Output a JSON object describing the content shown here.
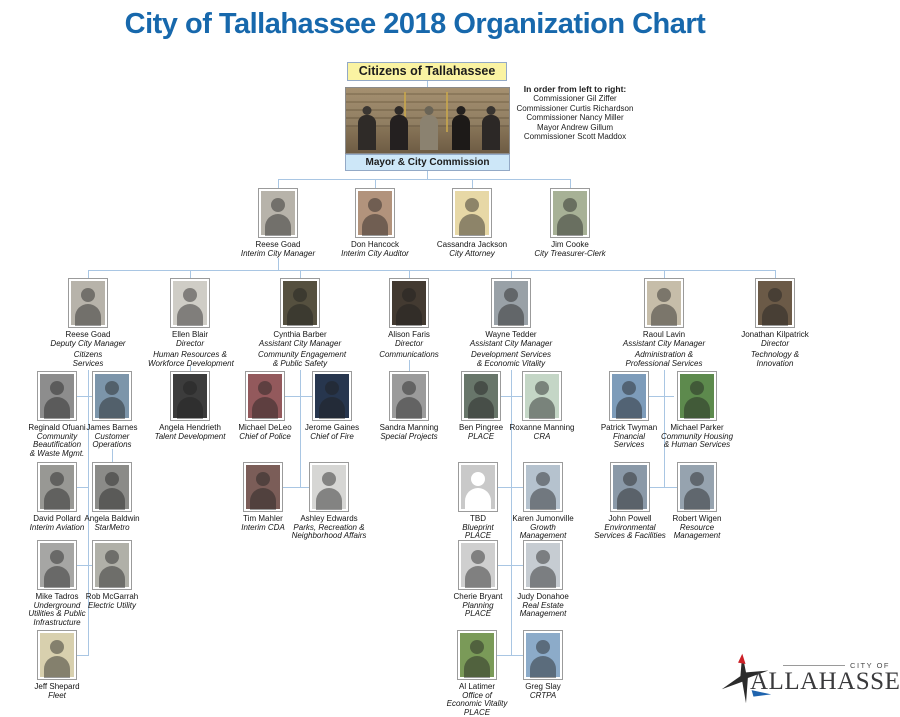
{
  "title": "City of Tallahassee 2018 Organization Chart",
  "top": {
    "citizens_box": "Citizens of Tallahassee",
    "commission_box": "Mayor & City Commission",
    "note": {
      "heading": "In order from left to right:",
      "lines": [
        "Commissioner Gil Ziffer",
        "Commissioner Curtis Richardson",
        "Commissioner Nancy Miller",
        "Mayor Andrew Gillum",
        "Commissioner Scott Maddox"
      ]
    }
  },
  "logo": {
    "city_of": "CITY OF",
    "name": "ALLAHASSEE"
  },
  "colors": {
    "title_blue": "#1768AC",
    "connector_blue": "#A9C6E3",
    "citizens_box_bg": "#FAF3A2",
    "commission_box_bg": "#CDE7F8",
    "box_border": "#93A9C6"
  },
  "people": [
    {
      "id": "reese-goad-cm",
      "name": "Reese Goad",
      "title": "Interim City Manager",
      "dept": [],
      "photo": "#b7b3aa"
    },
    {
      "id": "don-hancock",
      "name": "Don Hancock",
      "title": "Interim City Auditor",
      "dept": [],
      "photo": "#b2937c"
    },
    {
      "id": "cassandra-jackson",
      "name": "Cassandra Jackson",
      "title": "City Attorney",
      "dept": [],
      "photo": "#e7d8a6"
    },
    {
      "id": "jim-cooke",
      "name": "Jim Cooke",
      "title": "City Treasurer-Clerk",
      "dept": [],
      "photo": "#a7b196"
    },
    {
      "id": "reese-goad-dcm",
      "name": "Reese Goad",
      "title": "Deputy City Manager",
      "dept": [
        "Citizens",
        "Services"
      ],
      "photo": "#b7b3aa"
    },
    {
      "id": "ellen-blair",
      "name": "Ellen Blair",
      "title": "Director",
      "dept": [
        "Human Resources &",
        "Workforce Development"
      ],
      "photo": "#cfcdc6"
    },
    {
      "id": "cynthia-barber",
      "name": "Cynthia Barber",
      "title": "Assistant City Manager",
      "dept": [
        "Community Engagement",
        "& Public Safety"
      ],
      "photo": "#55503f"
    },
    {
      "id": "alison-faris",
      "name": "Alison Faris",
      "title": "Director",
      "dept": [
        "Communications"
      ],
      "photo": "#433a31"
    },
    {
      "id": "wayne-tedder",
      "name": "Wayne Tedder",
      "title": "Assistant City Manager",
      "dept": [
        "Development Services",
        "& Economic Vitality"
      ],
      "photo": "#99a1a7"
    },
    {
      "id": "raoul-lavin",
      "name": "Raoul Lavin",
      "title": "Assistant City Manager",
      "dept": [
        "Administration &",
        "Professional Services"
      ],
      "photo": "#c6bda9"
    },
    {
      "id": "jonathan-kilpatrick",
      "name": "Jonathan Kilpatrick",
      "title": "Director",
      "dept": [
        "Technology &",
        "Innovation"
      ],
      "photo": "#6b5a47"
    },
    {
      "id": "reginald-ofuani",
      "name": "Reginald Ofuani",
      "title": "",
      "dept": [
        "Community",
        "Beautification",
        "& Waste Mgmt."
      ],
      "photo": "#8d8d8d"
    },
    {
      "id": "james-barnes",
      "name": "James Barnes",
      "title": "",
      "dept": [
        "Customer",
        "Operations"
      ],
      "photo": "#7c95aa"
    },
    {
      "id": "angela-hendrieth",
      "name": "Angela Hendrieth",
      "title": "",
      "dept": [
        "Talent Development"
      ],
      "photo": "#3c3c3c"
    },
    {
      "id": "michael-deleo",
      "name": "Michael DeLeo",
      "title": "",
      "dept": [
        "Chief of Police"
      ],
      "photo": "#93595c"
    },
    {
      "id": "jerome-gaines",
      "name": "Jerome Gaines",
      "title": "",
      "dept": [
        "Chief of Fire"
      ],
      "photo": "#27364e"
    },
    {
      "id": "sandra-manning",
      "name": "Sandra Manning",
      "title": "",
      "dept": [
        "Special Projects"
      ],
      "photo": "#9b9b9b"
    },
    {
      "id": "ben-pingree",
      "name": "Ben Pingree",
      "title": "",
      "dept": [
        "PLACE"
      ],
      "photo": "#68766a"
    },
    {
      "id": "roxanne-manning",
      "name": "Roxanne Manning",
      "title": "",
      "dept": [
        "CRA"
      ],
      "photo": "#c4d6c6"
    },
    {
      "id": "patrick-twyman",
      "name": "Patrick Twyman",
      "title": "",
      "dept": [
        "Financial",
        "Services"
      ],
      "photo": "#7d9cba"
    },
    {
      "id": "michael-parker",
      "name": "Michael Parker",
      "title": "",
      "dept": [
        "Community Housing",
        "& Human Services"
      ],
      "photo": "#5d8a4d"
    },
    {
      "id": "david-pollard",
      "name": "David Pollard",
      "title": "",
      "dept": [
        "Interim Aviation"
      ],
      "photo": "#989894"
    },
    {
      "id": "angela-baldwin",
      "name": "Angela Baldwin",
      "title": "",
      "dept": [
        "StarMetro"
      ],
      "photo": "#8b8b88"
    },
    {
      "id": "tim-mahler",
      "name": "Tim Mahler",
      "title": "",
      "dept": [
        "Interim CDA"
      ],
      "photo": "#7b5d58"
    },
    {
      "id": "ashley-edwards",
      "name": "Ashley Edwards",
      "title": "",
      "dept": [
        "Parks, Recreation &",
        "Neighborhood Affairs"
      ],
      "photo": "#d6d6d4"
    },
    {
      "id": "tbd-blueprint",
      "name": "TBD",
      "title": "",
      "dept": [
        "Blueprint",
        "PLACE"
      ],
      "photo": "#c9c9c9",
      "placeholder": true
    },
    {
      "id": "karen-jumonville",
      "name": "Karen Jumonville",
      "title": "",
      "dept": [
        "Growth",
        "Management"
      ],
      "photo": "#b5c2ce"
    },
    {
      "id": "john-powell",
      "name": "John Powell",
      "title": "",
      "dept": [
        "Environmental",
        "Services & Facilities"
      ],
      "photo": "#8a99a8"
    },
    {
      "id": "robert-wigen",
      "name": "Robert Wigen",
      "title": "",
      "dept": [
        "Resource",
        "Management"
      ],
      "photo": "#96a3af"
    },
    {
      "id": "mike-tadros",
      "name": "Mike Tadros",
      "title": "",
      "dept": [
        "Underground",
        "Utilities & Public",
        "Infrastructure"
      ],
      "photo": "#a6a6a4"
    },
    {
      "id": "rob-mcgarrah",
      "name": "Rob McGarrah",
      "title": "",
      "dept": [
        "Electric Utility"
      ],
      "photo": "#b0b0a8"
    },
    {
      "id": "cherie-bryant",
      "name": "Cherie Bryant",
      "title": "",
      "dept": [
        "Planning",
        "PLACE"
      ],
      "photo": "#cfcfcf"
    },
    {
      "id": "judy-donahoe",
      "name": "Judy Donahoe",
      "title": "",
      "dept": [
        "Real Estate",
        "Management"
      ],
      "photo": "#c6ccd2"
    },
    {
      "id": "jeff-shepard",
      "name": "Jeff Shepard",
      "title": "",
      "dept": [
        "Fleet"
      ],
      "photo": "#d8d0ae"
    },
    {
      "id": "al-latimer",
      "name": "Al Latimer",
      "title": "",
      "dept": [
        "Office of",
        "Economic Vitality",
        "PLACE"
      ],
      "photo": "#7a9a58"
    },
    {
      "id": "greg-slay",
      "name": "Greg Slay",
      "title": "",
      "dept": [
        "CRTPA"
      ],
      "photo": "#8cabc9"
    }
  ]
}
